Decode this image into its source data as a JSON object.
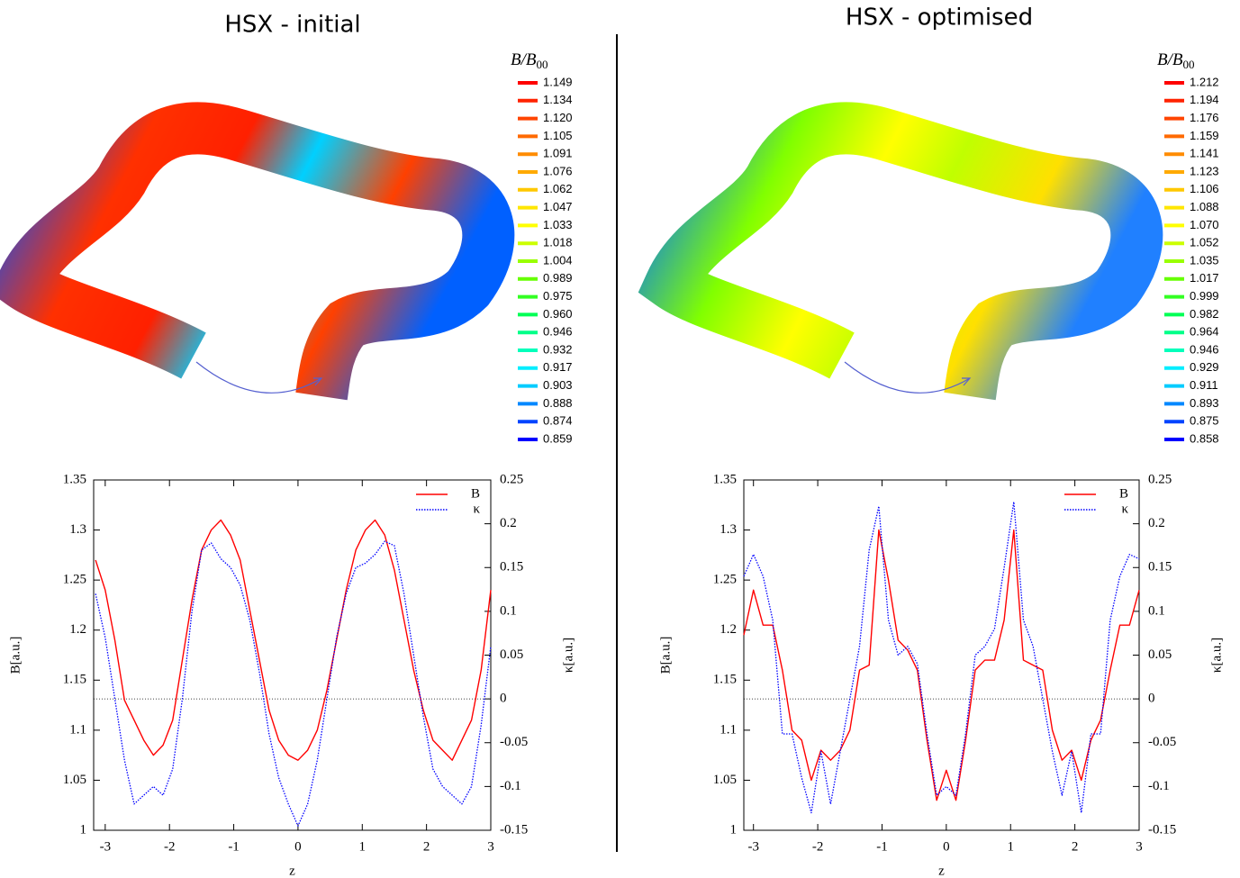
{
  "chart_data": [
    {
      "type": "line",
      "title": "HSX - initial",
      "x_label": "z",
      "y_label": "B[a.u.]",
      "y2_label": "κ[a.u.]",
      "x": [
        -3.15,
        -3.0,
        -2.85,
        -2.7,
        -2.55,
        -2.4,
        -2.25,
        -2.1,
        -1.95,
        -1.8,
        -1.65,
        -1.5,
        -1.35,
        -1.2,
        -1.05,
        -0.9,
        -0.75,
        -0.6,
        -0.45,
        -0.3,
        -0.15,
        0,
        0.15,
        0.3,
        0.45,
        0.6,
        0.75,
        0.9,
        1.05,
        1.2,
        1.35,
        1.5,
        1.65,
        1.8,
        1.95,
        2.1,
        2.25,
        2.4,
        2.55,
        2.7,
        2.85,
        3.0
      ],
      "series": [
        {
          "name": "B",
          "color": "#ff0000",
          "style": "solid",
          "values": [
            1.27,
            1.24,
            1.19,
            1.13,
            1.11,
            1.09,
            1.075,
            1.085,
            1.11,
            1.17,
            1.23,
            1.28,
            1.3,
            1.31,
            1.295,
            1.27,
            1.22,
            1.17,
            1.12,
            1.09,
            1.075,
            1.07,
            1.08,
            1.1,
            1.14,
            1.19,
            1.24,
            1.28,
            1.3,
            1.31,
            1.295,
            1.26,
            1.21,
            1.16,
            1.12,
            1.09,
            1.08,
            1.07,
            1.09,
            1.11,
            1.16,
            1.24
          ]
        },
        {
          "name": "κ",
          "color": "#0000ff",
          "style": "dotted",
          "axis": "y2",
          "values": [
            0.12,
            0.07,
            0.0,
            -0.07,
            -0.12,
            -0.11,
            -0.1,
            -0.11,
            -0.08,
            0.0,
            0.1,
            0.17,
            0.178,
            0.16,
            0.15,
            0.13,
            0.09,
            0.03,
            -0.04,
            -0.09,
            -0.12,
            -0.145,
            -0.12,
            -0.07,
            0.0,
            0.07,
            0.12,
            0.15,
            0.155,
            0.165,
            0.18,
            0.175,
            0.12,
            0.05,
            -0.02,
            -0.08,
            -0.1,
            -0.11,
            -0.12,
            -0.1,
            -0.03,
            0.06
          ]
        }
      ],
      "xlim": [
        -3.18,
        3
      ],
      "xticks": [
        -3,
        -2,
        -1,
        0,
        1,
        2,
        3
      ],
      "ylim": [
        1,
        1.35
      ],
      "yticks": [
        1,
        1.05,
        1.1,
        1.15,
        1.2,
        1.25,
        1.3,
        1.35
      ],
      "y2lim": [
        -0.15,
        0.25
      ],
      "y2ticks": [
        -0.15,
        -0.1,
        -0.05,
        0,
        0.05,
        0.1,
        0.15,
        0.2,
        0.25
      ],
      "zero_line": true,
      "legend": "upper right"
    },
    {
      "type": "line",
      "title": "HSX - optimised",
      "x_label": "z",
      "y_label": "B[a.u.]",
      "y2_label": "κ[a.u.]",
      "x": [
        -3.15,
        -3.0,
        -2.85,
        -2.7,
        -2.55,
        -2.4,
        -2.25,
        -2.1,
        -1.95,
        -1.8,
        -1.65,
        -1.5,
        -1.35,
        -1.2,
        -1.05,
        -0.9,
        -0.75,
        -0.6,
        -0.45,
        -0.3,
        -0.15,
        0,
        0.15,
        0.3,
        0.45,
        0.6,
        0.75,
        0.9,
        1.05,
        1.2,
        1.35,
        1.5,
        1.65,
        1.8,
        1.95,
        2.1,
        2.25,
        2.4,
        2.55,
        2.7,
        2.85,
        3.0
      ],
      "series": [
        {
          "name": "B",
          "color": "#ff0000",
          "style": "solid",
          "values": [
            1.195,
            1.24,
            1.205,
            1.205,
            1.16,
            1.1,
            1.09,
            1.05,
            1.08,
            1.07,
            1.08,
            1.1,
            1.16,
            1.165,
            1.3,
            1.25,
            1.19,
            1.18,
            1.16,
            1.09,
            1.03,
            1.06,
            1.03,
            1.09,
            1.16,
            1.17,
            1.17,
            1.21,
            1.3,
            1.17,
            1.165,
            1.16,
            1.1,
            1.07,
            1.08,
            1.05,
            1.09,
            1.11,
            1.16,
            1.205,
            1.205,
            1.24
          ]
        },
        {
          "name": "κ",
          "color": "#0000ff",
          "style": "dotted",
          "axis": "y2",
          "values": [
            0.14,
            0.165,
            0.14,
            0.09,
            -0.04,
            -0.04,
            -0.09,
            -0.13,
            -0.06,
            -0.12,
            -0.06,
            0.0,
            0.06,
            0.17,
            0.22,
            0.09,
            0.05,
            0.06,
            0.04,
            -0.04,
            -0.11,
            -0.1,
            -0.11,
            -0.04,
            0.05,
            0.06,
            0.08,
            0.15,
            0.225,
            0.09,
            0.06,
            0.0,
            -0.06,
            -0.11,
            -0.06,
            -0.13,
            -0.04,
            -0.04,
            0.09,
            0.14,
            0.165,
            0.16
          ]
        }
      ],
      "xlim": [
        -3.15,
        3
      ],
      "xticks": [
        -3,
        -2,
        -1,
        0,
        1,
        2,
        3
      ],
      "ylim": [
        1,
        1.35
      ],
      "yticks": [
        1,
        1.05,
        1.1,
        1.15,
        1.2,
        1.25,
        1.3,
        1.35
      ],
      "y2lim": [
        -0.15,
        0.25
      ],
      "y2ticks": [
        -0.15,
        -0.1,
        -0.05,
        0,
        0.05,
        0.1,
        0.15,
        0.2,
        0.25
      ],
      "zero_line": true,
      "legend": "upper right"
    }
  ],
  "colorbars": [
    {
      "label": "B/B",
      "label_subscript": "00",
      "levels": [
        "1.149",
        "1.134",
        "1.120",
        "1.105",
        "1.091",
        "1.076",
        "1.062",
        "1.047",
        "1.033",
        "1.018",
        "1.004",
        "0.989",
        "0.975",
        "0.960",
        "0.946",
        "0.932",
        "0.917",
        "0.903",
        "0.888",
        "0.874",
        "0.859"
      ],
      "colors": [
        "#ff0000",
        "#ff2200",
        "#ff4400",
        "#ff6a00",
        "#ff8c00",
        "#ffaa00",
        "#ffc800",
        "#ffe600",
        "#ffff00",
        "#ccff00",
        "#99ff00",
        "#66ff00",
        "#33ff22",
        "#00ff55",
        "#00ff88",
        "#00ffbb",
        "#00eeff",
        "#00ccff",
        "#0088ff",
        "#0044ff",
        "#0000ff"
      ]
    },
    {
      "label": "B/B",
      "label_subscript": "00",
      "levels": [
        "1.212",
        "1.194",
        "1.176",
        "1.159",
        "1.141",
        "1.123",
        "1.106",
        "1.088",
        "1.070",
        "1.052",
        "1.035",
        "1.017",
        "0.999",
        "0.982",
        "0.964",
        "0.946",
        "0.929",
        "0.911",
        "0.893",
        "0.875",
        "0.858"
      ],
      "colors": [
        "#ff0000",
        "#ff2200",
        "#ff4400",
        "#ff6a00",
        "#ff8c00",
        "#ffaa00",
        "#ffc800",
        "#ffe600",
        "#ffff00",
        "#ccff00",
        "#99ff00",
        "#66ff00",
        "#33ff22",
        "#00ff55",
        "#00ff88",
        "#00ffbb",
        "#00eeff",
        "#00ccff",
        "#0088ff",
        "#0044ff",
        "#0000ff"
      ]
    }
  ]
}
